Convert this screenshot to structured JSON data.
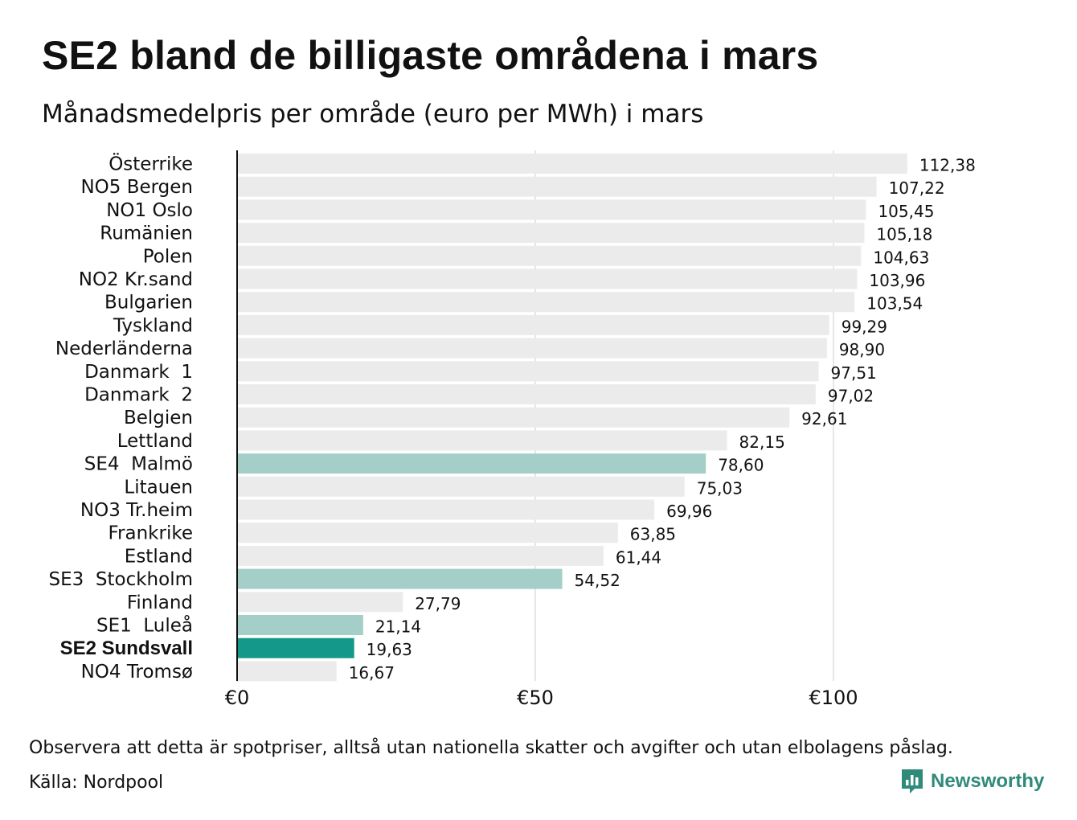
{
  "title": "SE2 bland de billigaste områdena i mars",
  "subtitle": "Månadsmedelpris per område (euro per MWh) i mars",
  "footnote": "Observera att detta är spotpriser, alltså utan nationella skatter och avgifter och utan elbolagens påslag.",
  "source": "Källa: Nordpool",
  "brand": {
    "name": "Newsworthy",
    "icon": "newsworthy-logo-icon",
    "color": "#2e8b7a"
  },
  "colors": {
    "default": "#ebebeb",
    "swedish": "#a4cfc8",
    "highlight": "#13988a",
    "axis": "#111111",
    "grid": "#cccccc"
  },
  "chart_data": {
    "type": "bar",
    "orientation": "horizontal",
    "title": "SE2 bland de billigaste områdena i mars",
    "subtitle": "Månadsmedelpris per område (euro per MWh) i mars",
    "xlabel": "",
    "ylabel": "",
    "xlim": [
      0,
      112.38
    ],
    "ticks": [
      {
        "value": 0,
        "label": "€0"
      },
      {
        "value": 50,
        "label": "€50"
      },
      {
        "value": 100,
        "label": "€100"
      }
    ],
    "grid": true,
    "bars": [
      {
        "category": "Österrike",
        "value": 112.38,
        "label": "112,38",
        "style": "default"
      },
      {
        "category": "NO5 Bergen",
        "value": 107.22,
        "label": "107,22",
        "style": "default"
      },
      {
        "category": "NO1 Oslo",
        "value": 105.45,
        "label": "105,45",
        "style": "default"
      },
      {
        "category": "Rumänien",
        "value": 105.18,
        "label": "105,18",
        "style": "default"
      },
      {
        "category": "Polen",
        "value": 104.63,
        "label": "104,63",
        "style": "default"
      },
      {
        "category": "NO2 Kr.sand",
        "value": 103.96,
        "label": "103,96",
        "style": "default"
      },
      {
        "category": "Bulgarien",
        "value": 103.54,
        "label": "103,54",
        "style": "default"
      },
      {
        "category": "Tyskland",
        "value": 99.29,
        "label": "99,29",
        "style": "default"
      },
      {
        "category": "Nederländerna",
        "value": 98.9,
        "label": "98,90",
        "style": "default"
      },
      {
        "category": "Danmark  1",
        "value": 97.51,
        "label": "97,51",
        "style": "default"
      },
      {
        "category": "Danmark  2",
        "value": 97.02,
        "label": "97,02",
        "style": "default"
      },
      {
        "category": "Belgien",
        "value": 92.61,
        "label": "92,61",
        "style": "default"
      },
      {
        "category": "Lettland",
        "value": 82.15,
        "label": "82,15",
        "style": "default"
      },
      {
        "category": "SE4  Malmö",
        "value": 78.6,
        "label": "78,60",
        "style": "swedish"
      },
      {
        "category": "Litauen",
        "value": 75.03,
        "label": "75,03",
        "style": "default"
      },
      {
        "category": "NO3 Tr.heim",
        "value": 69.96,
        "label": "69,96",
        "style": "default"
      },
      {
        "category": "Frankrike",
        "value": 63.85,
        "label": "63,85",
        "style": "default"
      },
      {
        "category": "Estland",
        "value": 61.44,
        "label": "61,44",
        "style": "default"
      },
      {
        "category": "SE3  Stockholm",
        "value": 54.52,
        "label": "54,52",
        "style": "swedish"
      },
      {
        "category": "Finland",
        "value": 27.79,
        "label": "27,79",
        "style": "default"
      },
      {
        "category": "SE1  Luleå",
        "value": 21.14,
        "label": "21,14",
        "style": "swedish"
      },
      {
        "category": "SE2 Sundsvall",
        "value": 19.63,
        "label": "19,63",
        "style": "highlight"
      },
      {
        "category": "NO4 Tromsø",
        "value": 16.67,
        "label": "16,67",
        "style": "default"
      }
    ]
  }
}
